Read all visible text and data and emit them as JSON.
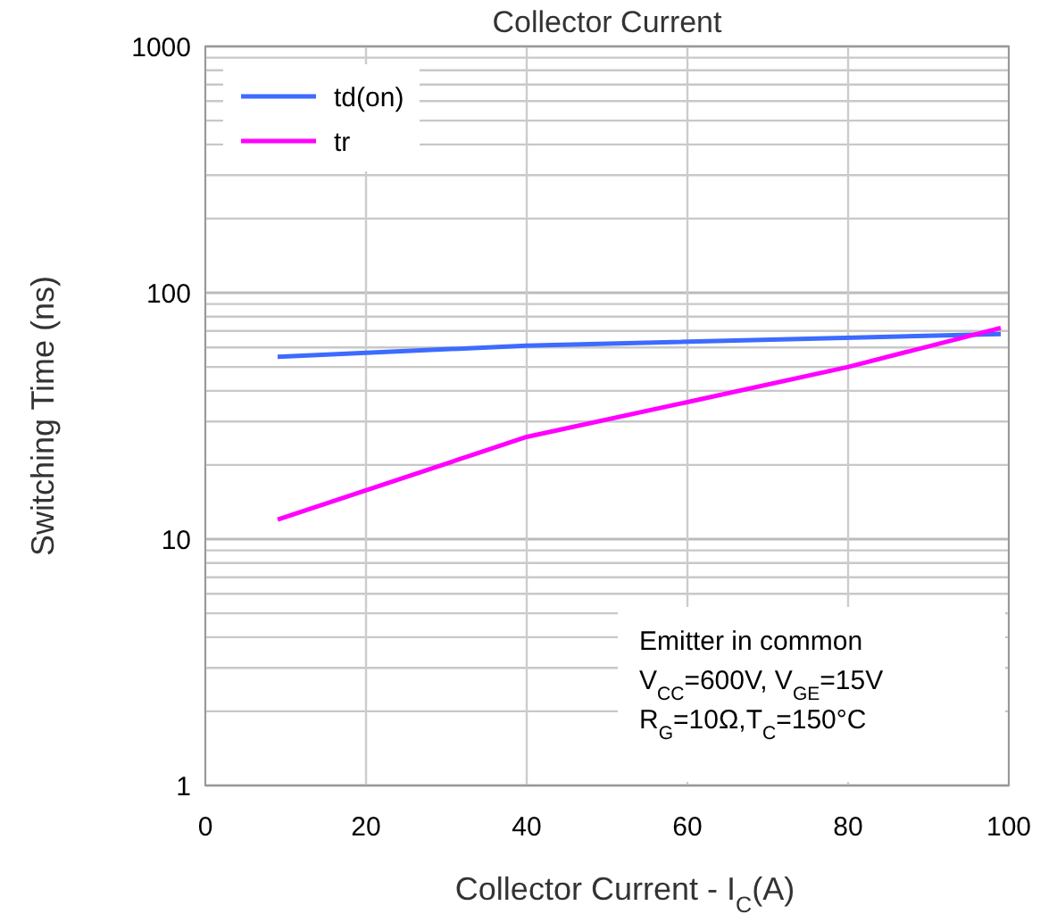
{
  "chart_data": {
    "type": "line",
    "title": "Collector Current",
    "xlabel": "Collector Current - I$_{C}$(A)",
    "ylabel": "Switching Time (ns)",
    "xlim": [
      0,
      100
    ],
    "xticks": [
      0,
      20,
      40,
      60,
      80,
      100
    ],
    "ylim": [
      1,
      1000
    ],
    "yticks": [
      1,
      10,
      100,
      1000
    ],
    "log": "y",
    "grid": true,
    "legend": "top left",
    "line_style": "solid",
    "series": [
      {
        "name": "td(on)",
        "color": "#3d6bff",
        "x": [
          9,
          40,
          99
        ],
        "values": [
          55,
          61,
          68
        ]
      },
      {
        "name": "tr",
        "color": "#ff00ff",
        "x": [
          9,
          40,
          60,
          80,
          99
        ],
        "values": [
          12,
          26,
          36,
          50,
          72
        ]
      }
    ],
    "annotations": [
      "Emitter in common",
      "V$_{CC}$=600V, V$_{GE}$=15V",
      "R$_{G}$=10Ω,T$_{C}$=150°C"
    ]
  }
}
